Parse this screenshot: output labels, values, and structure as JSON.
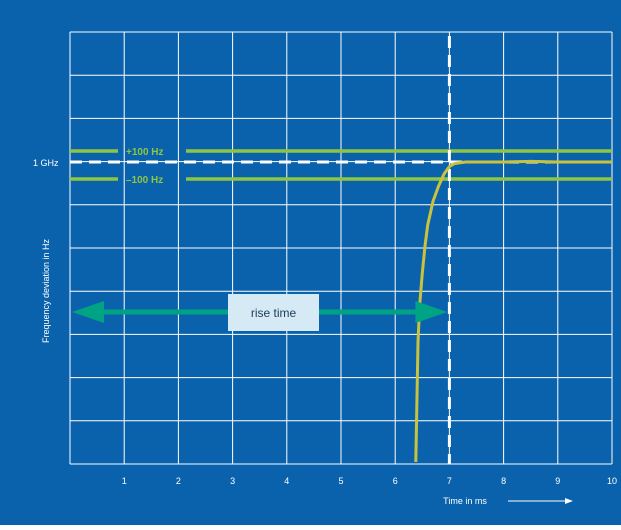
{
  "chart_data": {
    "type": "line",
    "xlabel": "Time in ms",
    "ylabel": "Frequency deviation in Hz",
    "x_ticks": [
      1,
      2,
      3,
      4,
      5,
      6,
      7,
      8,
      9,
      10
    ],
    "xlim": [
      0,
      10
    ],
    "y_divisions": 10,
    "y_reference_label": "1 GHz",
    "grid": true,
    "series": [
      {
        "x": [
          6.38,
          6.4,
          6.42,
          6.45,
          6.5,
          6.55,
          6.6,
          6.7,
          6.8,
          6.9,
          7.0,
          7.1,
          7.3,
          7.6,
          8.0,
          8.5,
          9.0,
          9.5,
          10.0
        ],
        "y_fraction_of_target": [
          0.0,
          0.2,
          0.4,
          0.52,
          0.63,
          0.72,
          0.79,
          0.87,
          0.92,
          0.96,
          0.985,
          0.995,
          1.0,
          1.0,
          1.0,
          1.002,
          1.0,
          1.0,
          1.0
        ]
      }
    ],
    "tolerance_band": {
      "upper_label": "+100 Hz",
      "lower_label": "–100 Hz"
    },
    "marker_x": 7.0,
    "annotation": "rise time",
    "colors": {
      "background": "#0a62ad",
      "grid": "#ffffff",
      "curve": "#c9c33c",
      "band": "#8ec641",
      "arrow": "#00a383",
      "reference_line": "#ffffff",
      "label_box": "#d6eaf5"
    }
  }
}
